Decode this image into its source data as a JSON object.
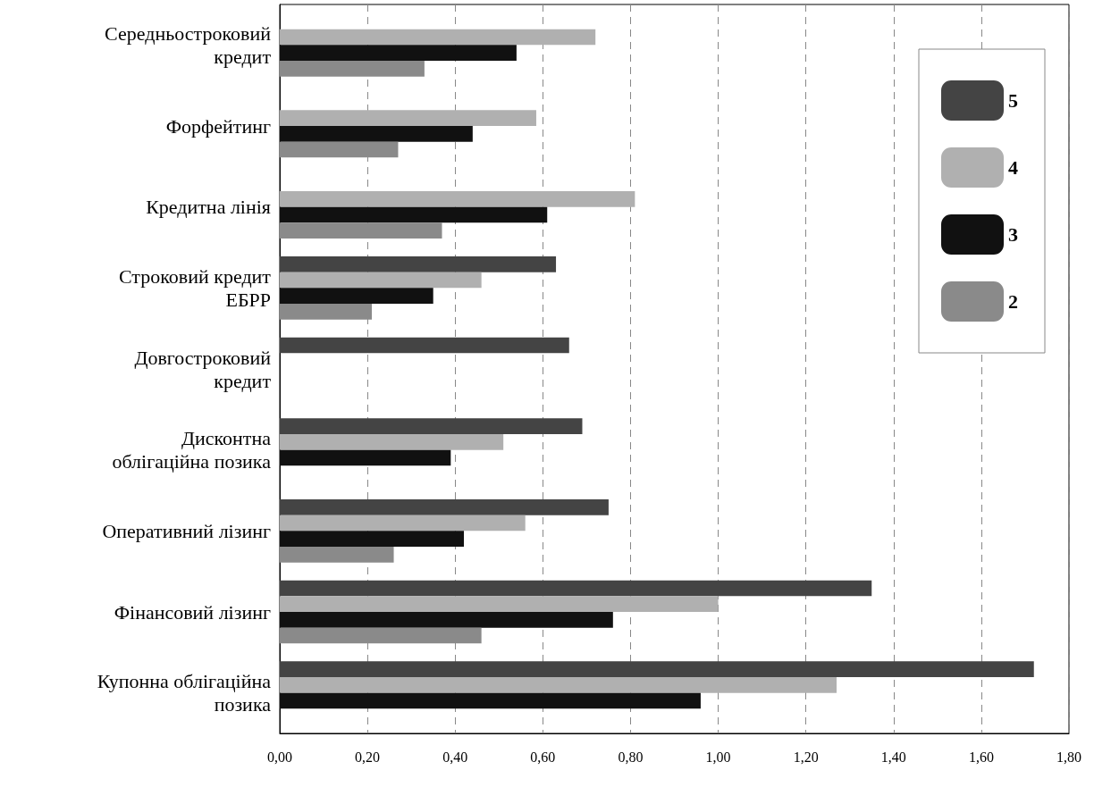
{
  "chart_data": {
    "type": "bar",
    "orientation": "horizontal",
    "categories": [
      "Середньостроковий кредит",
      "Форфейтинг",
      "Кредитна лінія",
      "Строковий кредит ЕБРР",
      "Довгостроковий кредит",
      "Дисконтна облігаційна позика",
      "Оперативний лізинг",
      "Фінансовий лізинг",
      "Купонна облігаційна позика"
    ],
    "series": [
      {
        "name": "5",
        "color": "#444444",
        "values": [
          null,
          null,
          null,
          0.63,
          0.66,
          0.69,
          0.75,
          1.35,
          1.72
        ]
      },
      {
        "name": "4",
        "color": "#b0b0b0",
        "values": [
          0.72,
          0.585,
          0.81,
          0.46,
          null,
          0.51,
          0.56,
          1.0,
          1.27
        ]
      },
      {
        "name": "3",
        "color": "#111111",
        "values": [
          0.54,
          0.44,
          0.61,
          0.35,
          null,
          0.39,
          0.42,
          0.76,
          0.96
        ]
      },
      {
        "name": "2",
        "color": "#8a8a8a",
        "values": [
          0.33,
          0.27,
          0.37,
          0.21,
          null,
          null,
          0.26,
          0.46,
          null
        ]
      }
    ],
    "xlim": [
      0,
      1.8
    ],
    "xticks": [
      {
        "value": 0,
        "label": "0,00"
      },
      {
        "value": 0.2,
        "label": "0,20"
      },
      {
        "value": 0.4,
        "label": "0,40"
      },
      {
        "value": 0.6,
        "label": "0,60"
      },
      {
        "value": 0.8,
        "label": "0,80"
      },
      {
        "value": 1.0,
        "label": "1,00"
      },
      {
        "value": 1.2,
        "label": "1,20"
      },
      {
        "value": 1.4,
        "label": "1,40"
      },
      {
        "value": 1.6,
        "label": "1,60"
      },
      {
        "value": 1.8,
        "label": "1,80"
      }
    ],
    "grid": "x",
    "legend": "top right"
  }
}
